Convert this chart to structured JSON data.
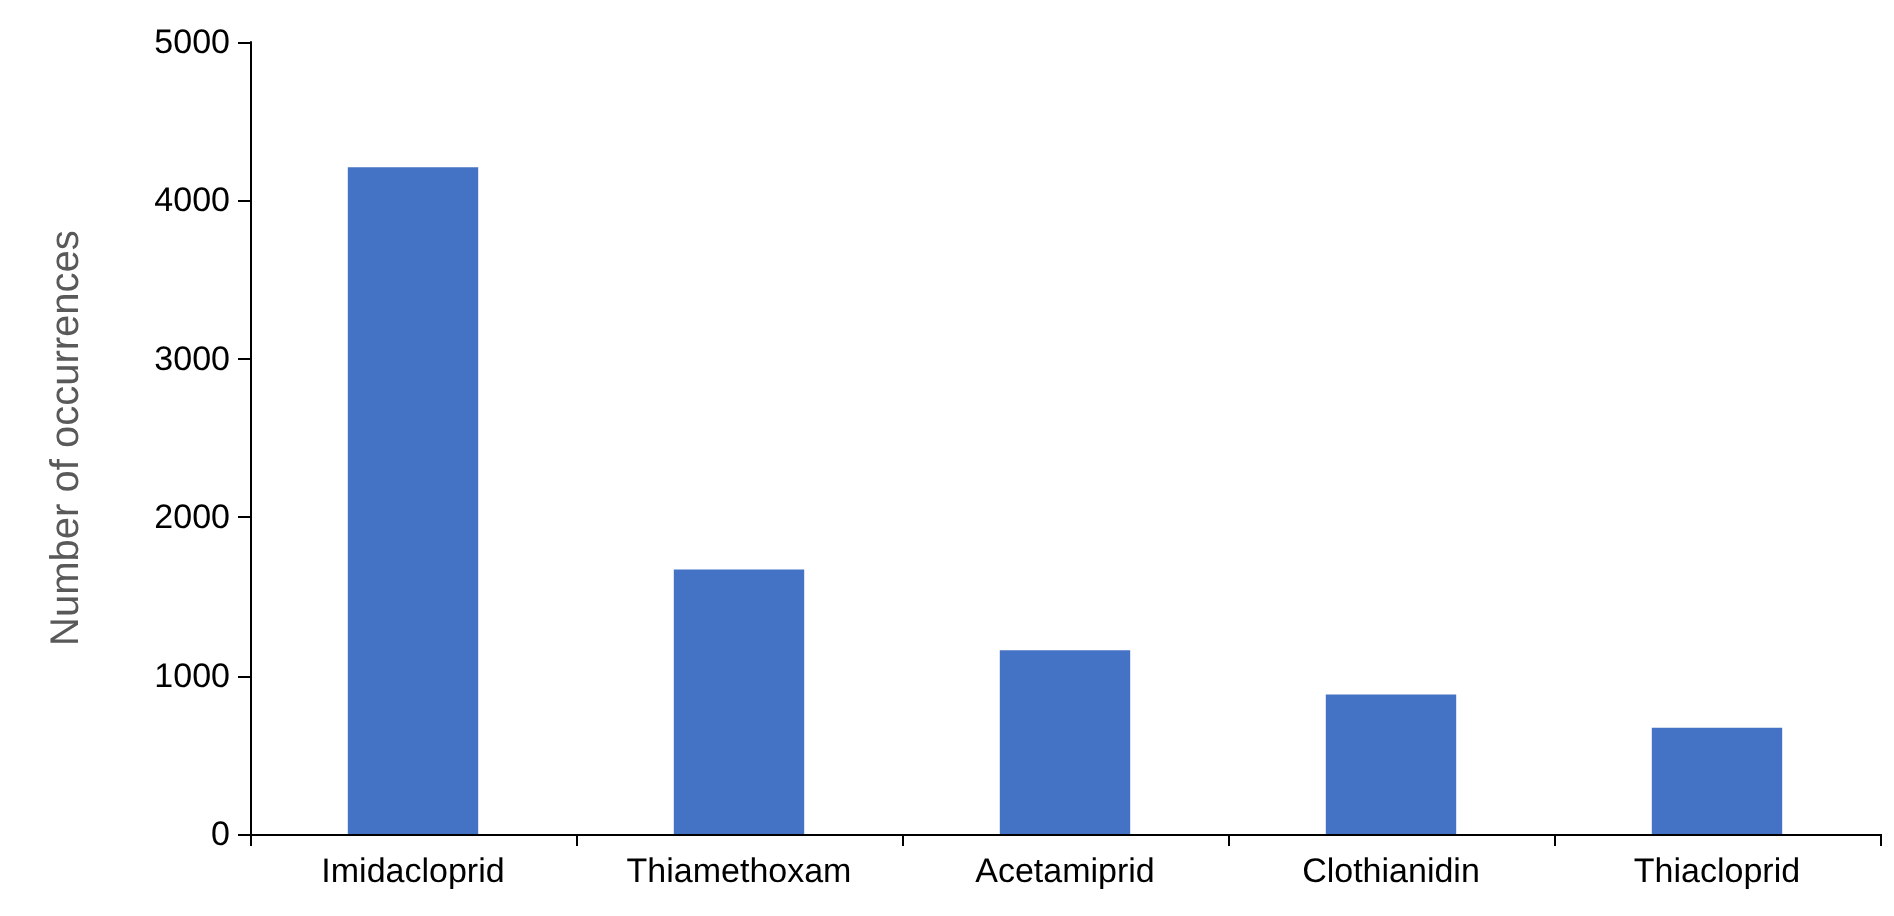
{
  "chart_data": {
    "type": "bar",
    "ylabel": "Number of occurrences",
    "categories": [
      "Imidacloprid",
      "Thiamethoxam",
      "Acetamiprid",
      "Clothianidin",
      "Thiacloprid"
    ],
    "values": [
      4210,
      1670,
      1160,
      880,
      670
    ],
    "color": "#4472c4",
    "ylim": [
      0,
      5000
    ],
    "yticks": [
      0,
      1000,
      2000,
      3000,
      4000,
      5000
    ],
    "grid": false
  }
}
